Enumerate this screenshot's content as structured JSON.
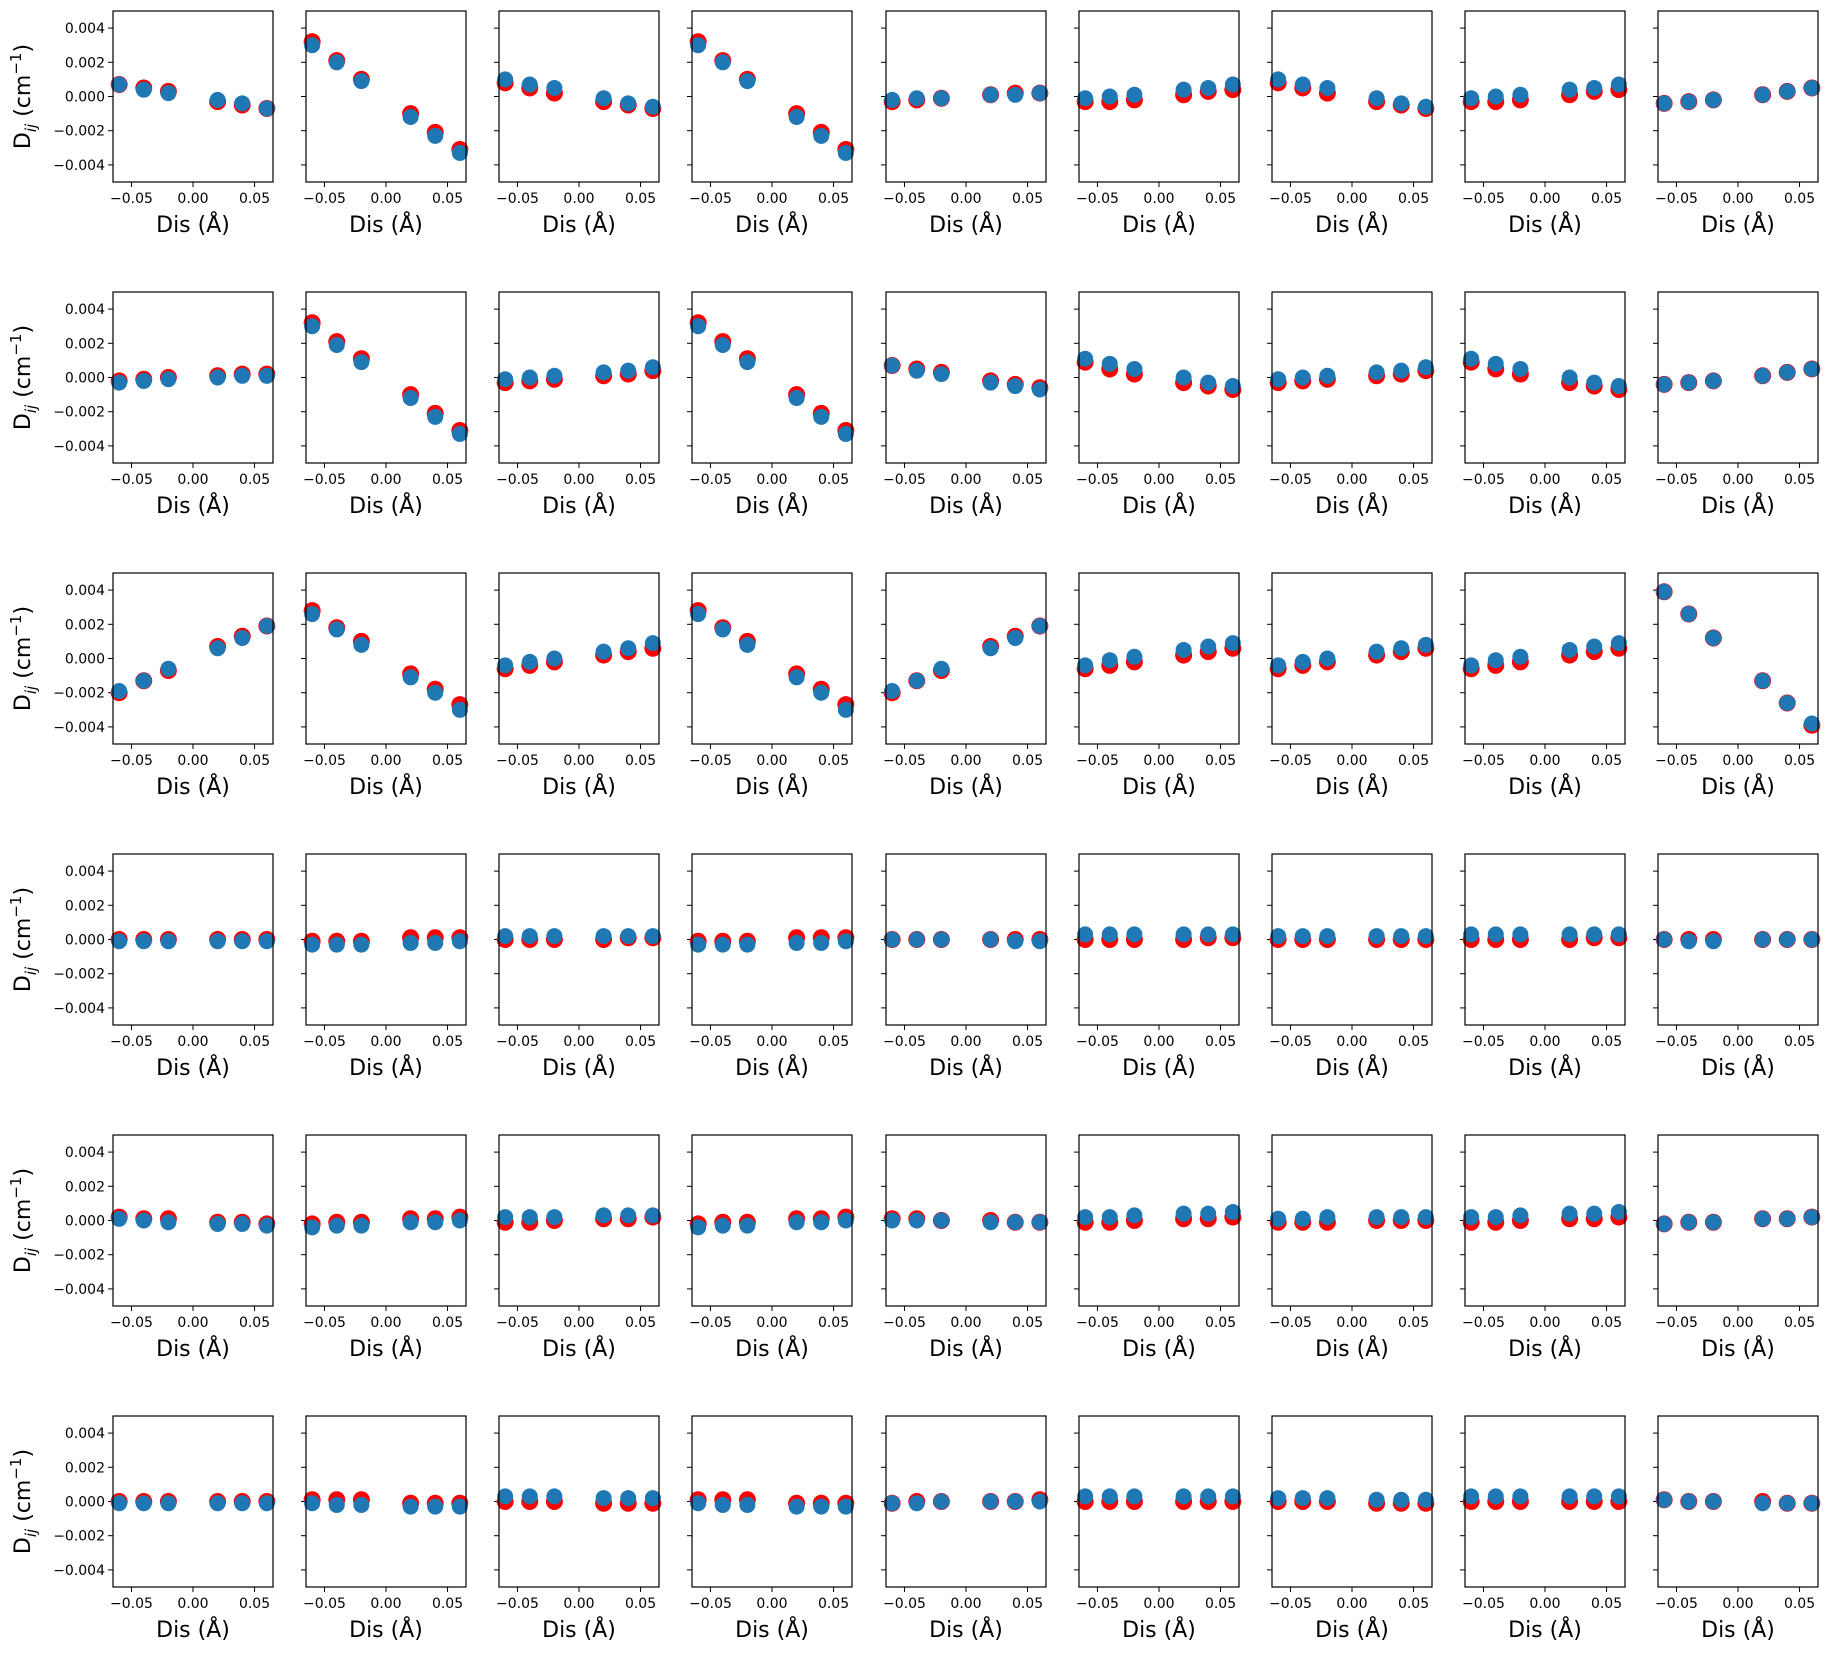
{
  "figure": {
    "xlabel": "Dis (Å)",
    "ylabel": "D_ij (cm⁻¹)",
    "ylabel_main": "D",
    "ylabel_sub": "ij",
    "ylabel_rest": " (cm",
    "ylabel_sup": "−1",
    "ylabel_close": ")"
  },
  "chart_data": {
    "type": "scatter",
    "layout": "grid",
    "rows": 6,
    "cols": 9,
    "x": [
      -0.06,
      -0.04,
      -0.02,
      0.02,
      0.04,
      0.06
    ],
    "xlim": [
      -0.065,
      0.065
    ],
    "ylim": [
      -0.005,
      0.005
    ],
    "xticks": [
      -0.05,
      0.0,
      0.05
    ],
    "xtick_labels": [
      "−0.05",
      "0.00",
      "0.05"
    ],
    "yticks": [
      -0.004,
      -0.002,
      0.0,
      0.002,
      0.004
    ],
    "ytick_labels": [
      "−0.004",
      "−0.002",
      "0.000",
      "0.002",
      "0.004"
    ],
    "colors": {
      "red": "#ff0000",
      "blue": "#1f77b4"
    },
    "series_colors": [
      "red",
      "blue"
    ],
    "panels": [
      [
        {
          "red": [
            0.0007,
            0.0005,
            0.0003,
            -0.0003,
            -0.0005,
            -0.0007
          ],
          "blue": [
            0.0007,
            0.0004,
            0.0002,
            -0.0002,
            -0.0004,
            -0.0007
          ]
        },
        {
          "red": [
            0.0032,
            0.0021,
            0.001,
            -0.001,
            -0.0021,
            -0.0031
          ],
          "blue": [
            0.003,
            0.002,
            0.0009,
            -0.0012,
            -0.0023,
            -0.0033
          ]
        },
        {
          "red": [
            0.0008,
            0.0005,
            0.0002,
            -0.0003,
            -0.0005,
            -0.0007
          ],
          "blue": [
            0.001,
            0.0007,
            0.0005,
            -0.0001,
            -0.0004,
            -0.0006
          ]
        },
        {
          "red": [
            0.0032,
            0.0021,
            0.001,
            -0.001,
            -0.0021,
            -0.0031
          ],
          "blue": [
            0.003,
            0.002,
            0.0009,
            -0.0012,
            -0.0023,
            -0.0033
          ]
        },
        {
          "red": [
            -0.0003,
            -0.0002,
            -0.0001,
            0.0001,
            0.0002,
            0.0002
          ],
          "blue": [
            -0.0002,
            -0.0001,
            -0.0001,
            0.0001,
            0.0001,
            0.0002
          ]
        },
        {
          "red": [
            -0.0003,
            -0.0003,
            -0.0002,
            0.0001,
            0.0003,
            0.0004
          ],
          "blue": [
            -0.0001,
            0.0,
            0.0001,
            0.0004,
            0.0005,
            0.0007
          ]
        },
        {
          "red": [
            0.0008,
            0.0005,
            0.0002,
            -0.0003,
            -0.0005,
            -0.0007
          ],
          "blue": [
            0.001,
            0.0007,
            0.0005,
            -0.0001,
            -0.0004,
            -0.0006
          ]
        },
        {
          "red": [
            -0.0003,
            -0.0003,
            -0.0002,
            0.0001,
            0.0003,
            0.0004
          ],
          "blue": [
            -0.0001,
            0.0,
            0.0001,
            0.0004,
            0.0005,
            0.0007
          ]
        },
        {
          "red": [
            -0.0004,
            -0.0003,
            -0.0002,
            0.0001,
            0.0003,
            0.0005
          ],
          "blue": [
            -0.0004,
            -0.0003,
            -0.0002,
            0.0001,
            0.0003,
            0.0005
          ]
        }
      ],
      [
        {
          "red": [
            -0.0002,
            -0.0001,
            -0.0,
            0.0001,
            0.0002,
            0.0002
          ],
          "blue": [
            -0.0003,
            -0.0002,
            -0.0001,
            0.0,
            0.0001,
            0.0001
          ]
        },
        {
          "red": [
            0.0032,
            0.0021,
            0.0011,
            -0.001,
            -0.0021,
            -0.0031
          ],
          "blue": [
            0.003,
            0.0019,
            0.0009,
            -0.0012,
            -0.0023,
            -0.0033
          ]
        },
        {
          "red": [
            -0.0003,
            -0.0002,
            -0.0001,
            0.0001,
            0.0002,
            0.0004
          ],
          "blue": [
            -0.0001,
            0.0,
            0.0001,
            0.0003,
            0.0004,
            0.0006
          ]
        },
        {
          "red": [
            0.0032,
            0.0021,
            0.0011,
            -0.001,
            -0.0021,
            -0.0031
          ],
          "blue": [
            0.003,
            0.0019,
            0.0009,
            -0.0012,
            -0.0023,
            -0.0033
          ]
        },
        {
          "red": [
            0.0007,
            0.0005,
            0.0003,
            -0.0002,
            -0.0004,
            -0.0006
          ],
          "blue": [
            0.0007,
            0.0004,
            0.0002,
            -0.0003,
            -0.0005,
            -0.0007
          ]
        },
        {
          "red": [
            0.0009,
            0.0005,
            0.0002,
            -0.0003,
            -0.0005,
            -0.0007
          ],
          "blue": [
            0.0011,
            0.0008,
            0.0005,
            0.0,
            -0.0003,
            -0.0005
          ]
        },
        {
          "red": [
            -0.0003,
            -0.0002,
            -0.0001,
            0.0001,
            0.0002,
            0.0004
          ],
          "blue": [
            -0.0001,
            0.0,
            0.0001,
            0.0003,
            0.0004,
            0.0006
          ]
        },
        {
          "red": [
            0.0009,
            0.0005,
            0.0002,
            -0.0003,
            -0.0005,
            -0.0007
          ],
          "blue": [
            0.0011,
            0.0008,
            0.0005,
            0.0,
            -0.0003,
            -0.0005
          ]
        },
        {
          "red": [
            -0.0004,
            -0.0003,
            -0.0002,
            0.0001,
            0.0003,
            0.0005
          ],
          "blue": [
            -0.0004,
            -0.0003,
            -0.0002,
            0.0001,
            0.0003,
            0.0005
          ]
        }
      ],
      [
        {
          "red": [
            -0.002,
            -0.0013,
            -0.0007,
            0.0007,
            0.0013,
            0.0019
          ],
          "blue": [
            -0.0019,
            -0.0013,
            -0.0006,
            0.0006,
            0.0012,
            0.0019
          ]
        },
        {
          "red": [
            0.0028,
            0.0018,
            0.001,
            -0.0009,
            -0.0018,
            -0.0027
          ],
          "blue": [
            0.0026,
            0.0017,
            0.0008,
            -0.0011,
            -0.002,
            -0.003
          ]
        },
        {
          "red": [
            -0.0006,
            -0.0004,
            -0.0002,
            0.0002,
            0.0004,
            0.0006
          ],
          "blue": [
            -0.0004,
            -0.0002,
            0.0,
            0.0004,
            0.0006,
            0.0009
          ]
        },
        {
          "red": [
            0.0028,
            0.0018,
            0.001,
            -0.0009,
            -0.0018,
            -0.0027
          ],
          "blue": [
            0.0026,
            0.0017,
            0.0008,
            -0.0011,
            -0.002,
            -0.003
          ]
        },
        {
          "red": [
            -0.002,
            -0.0013,
            -0.0007,
            0.0007,
            0.0013,
            0.0019
          ],
          "blue": [
            -0.0019,
            -0.0013,
            -0.0006,
            0.0006,
            0.0012,
            0.0019
          ]
        },
        {
          "red": [
            -0.0006,
            -0.0004,
            -0.0002,
            0.0002,
            0.0004,
            0.0006
          ],
          "blue": [
            -0.0004,
            -0.0001,
            0.0001,
            0.0005,
            0.0007,
            0.0009
          ]
        },
        {
          "red": [
            -0.0006,
            -0.0004,
            -0.0002,
            0.0002,
            0.0004,
            0.0006
          ],
          "blue": [
            -0.0004,
            -0.0002,
            0.0,
            0.0004,
            0.0006,
            0.0008
          ]
        },
        {
          "red": [
            -0.0006,
            -0.0004,
            -0.0002,
            0.0002,
            0.0004,
            0.0006
          ],
          "blue": [
            -0.0004,
            -0.0001,
            0.0001,
            0.0005,
            0.0007,
            0.0009
          ]
        },
        {
          "red": [
            0.0039,
            0.0026,
            0.0012,
            -0.0013,
            -0.0026,
            -0.0039
          ],
          "blue": [
            0.0039,
            0.0026,
            0.0012,
            -0.0013,
            -0.0026,
            -0.0038
          ]
        }
      ],
      [
        {
          "red": [
            0.0,
            0.0,
            0.0,
            0.0,
            0.0,
            0.0
          ],
          "blue": [
            -0.0001,
            -0.0001,
            -0.0001,
            -0.0001,
            -0.0001,
            -0.0001
          ]
        },
        {
          "red": [
            -0.0001,
            -0.0001,
            -0.0001,
            0.0001,
            0.0001,
            0.0001
          ],
          "blue": [
            -0.0003,
            -0.0003,
            -0.0003,
            -0.0002,
            -0.0002,
            -0.0001
          ]
        },
        {
          "red": [
            0.0,
            0.0,
            0.0,
            0.0,
            0.0001,
            0.0001
          ],
          "blue": [
            0.0002,
            0.0002,
            0.0002,
            0.0002,
            0.0002,
            0.0002
          ]
        },
        {
          "red": [
            -0.0001,
            -0.0001,
            -0.0001,
            0.0001,
            0.0001,
            0.0001
          ],
          "blue": [
            -0.0003,
            -0.0003,
            -0.0003,
            -0.0002,
            -0.0002,
            -0.0001
          ]
        },
        {
          "red": [
            0.0,
            0.0,
            0.0,
            0.0,
            0.0,
            0.0
          ],
          "blue": [
            0.0,
            0.0,
            0.0,
            0.0,
            -0.0001,
            -0.0001
          ]
        },
        {
          "red": [
            0.0,
            0.0,
            0.0,
            0.0,
            0.0001,
            0.0001
          ],
          "blue": [
            0.0003,
            0.0003,
            0.0003,
            0.0003,
            0.0003,
            0.0003
          ]
        },
        {
          "red": [
            0.0,
            0.0,
            0.0,
            0.0,
            0.0,
            0.0
          ],
          "blue": [
            0.0002,
            0.0002,
            0.0002,
            0.0002,
            0.0002,
            0.0002
          ]
        },
        {
          "red": [
            0.0,
            0.0,
            0.0,
            0.0,
            0.0001,
            0.0001
          ],
          "blue": [
            0.0003,
            0.0003,
            0.0003,
            0.0003,
            0.0003,
            0.0003
          ]
        },
        {
          "red": [
            0.0,
            0.0,
            0.0,
            0.0,
            0.0,
            0.0
          ],
          "blue": [
            0.0,
            -0.0001,
            -0.0001,
            0.0,
            0.0,
            0.0
          ]
        }
      ],
      [
        {
          "red": [
            0.0002,
            0.0001,
            0.0001,
            -0.0001,
            -0.0001,
            -0.0002
          ],
          "blue": [
            0.0001,
            0.0,
            -0.0001,
            -0.0002,
            -0.0002,
            -0.0003
          ]
        },
        {
          "red": [
            -0.0002,
            -0.0001,
            -0.0001,
            0.0001,
            0.0001,
            0.0002
          ],
          "blue": [
            -0.0004,
            -0.0003,
            -0.0003,
            -0.0001,
            -0.0001,
            0.0
          ]
        },
        {
          "red": [
            -0.0001,
            -0.0001,
            0.0,
            0.0001,
            0.0001,
            0.0002
          ],
          "blue": [
            0.0002,
            0.0002,
            0.0002,
            0.0003,
            0.0003,
            0.0003
          ]
        },
        {
          "red": [
            -0.0002,
            -0.0001,
            -0.0001,
            0.0001,
            0.0001,
            0.0002
          ],
          "blue": [
            -0.0004,
            -0.0003,
            -0.0003,
            -0.0001,
            -0.0001,
            0.0
          ]
        },
        {
          "red": [
            0.0001,
            0.0001,
            0.0,
            0.0,
            -0.0001,
            -0.0001
          ],
          "blue": [
            0.0,
            0.0,
            0.0,
            -0.0001,
            -0.0001,
            -0.0001
          ]
        },
        {
          "red": [
            -0.0001,
            -0.0001,
            0.0,
            0.0001,
            0.0001,
            0.0002
          ],
          "blue": [
            0.0002,
            0.0002,
            0.0003,
            0.0004,
            0.0004,
            0.0005
          ]
        },
        {
          "red": [
            -0.0001,
            -0.0001,
            -0.0001,
            0.0,
            0.0,
            0.0
          ],
          "blue": [
            0.0001,
            0.0001,
            0.0002,
            0.0002,
            0.0002,
            0.0002
          ]
        },
        {
          "red": [
            -0.0001,
            -0.0001,
            0.0,
            0.0001,
            0.0001,
            0.0002
          ],
          "blue": [
            0.0002,
            0.0002,
            0.0003,
            0.0004,
            0.0004,
            0.0005
          ]
        },
        {
          "red": [
            -0.0002,
            -0.0001,
            -0.0001,
            0.0001,
            0.0001,
            0.0002
          ],
          "blue": [
            -0.0002,
            -0.0001,
            -0.0001,
            0.0001,
            0.0001,
            0.0002
          ]
        }
      ],
      [
        {
          "red": [
            0.0,
            0.0,
            0.0,
            0.0,
            0.0,
            0.0
          ],
          "blue": [
            -0.0001,
            -0.0001,
            -0.0001,
            -0.0001,
            -0.0001,
            -0.0001
          ]
        },
        {
          "red": [
            0.0001,
            0.0001,
            0.0001,
            -0.0001,
            -0.0001,
            -0.0001
          ],
          "blue": [
            -0.0001,
            -0.0002,
            -0.0002,
            -0.0003,
            -0.0003,
            -0.0003
          ]
        },
        {
          "red": [
            0.0,
            0.0,
            0.0,
            -0.0001,
            -0.0001,
            -0.0001
          ],
          "blue": [
            0.0003,
            0.0003,
            0.0003,
            0.0002,
            0.0002,
            0.0002
          ]
        },
        {
          "red": [
            0.0001,
            0.0001,
            0.0001,
            -0.0001,
            -0.0001,
            -0.0001
          ],
          "blue": [
            -0.0001,
            -0.0002,
            -0.0002,
            -0.0003,
            -0.0003,
            -0.0003
          ]
        },
        {
          "red": [
            -0.0001,
            0.0,
            0.0,
            0.0,
            0.0,
            0.0001
          ],
          "blue": [
            -0.0001,
            -0.0001,
            0.0,
            0.0,
            0.0,
            0.0
          ]
        },
        {
          "red": [
            0.0,
            0.0,
            0.0,
            0.0,
            0.0,
            0.0
          ],
          "blue": [
            0.0003,
            0.0003,
            0.0003,
            0.0003,
            0.0003,
            0.0003
          ]
        },
        {
          "red": [
            0.0,
            0.0,
            0.0,
            -0.0001,
            -0.0001,
            -0.0001
          ],
          "blue": [
            0.0002,
            0.0002,
            0.0002,
            0.0001,
            0.0001,
            0.0001
          ]
        },
        {
          "red": [
            0.0,
            0.0,
            0.0,
            0.0,
            0.0,
            0.0
          ],
          "blue": [
            0.0003,
            0.0003,
            0.0003,
            0.0003,
            0.0003,
            0.0003
          ]
        },
        {
          "red": [
            0.0001,
            0.0,
            0.0,
            0.0,
            -0.0001,
            -0.0001
          ],
          "blue": [
            0.0001,
            0.0,
            0.0,
            -0.0001,
            -0.0001,
            -0.0001
          ]
        }
      ]
    ]
  }
}
